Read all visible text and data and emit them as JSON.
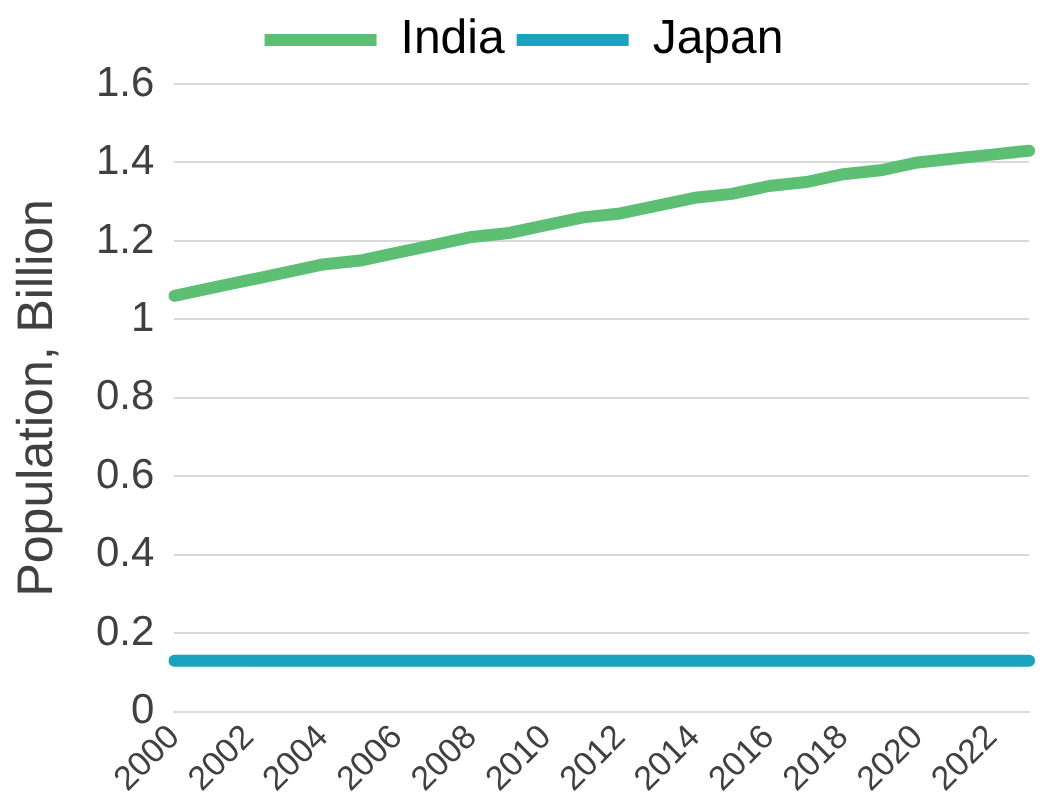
{
  "chart_data": {
    "type": "line",
    "ylabel": "Population, Billion",
    "categories": [
      "2000",
      null,
      "2002",
      null,
      "2004",
      null,
      "2006",
      null,
      "2008",
      null,
      "2010",
      null,
      "2012",
      null,
      "2014",
      null,
      "2016",
      null,
      "2018",
      null,
      "2020",
      null,
      "2022",
      null
    ],
    "series": [
      {
        "name": "India",
        "color": "#5cbf74",
        "values": [
          1.06,
          1.08,
          1.1,
          1.12,
          1.14,
          1.15,
          1.17,
          1.19,
          1.21,
          1.22,
          1.24,
          1.26,
          1.27,
          1.29,
          1.31,
          1.32,
          1.34,
          1.35,
          1.37,
          1.38,
          1.4,
          1.41,
          1.42,
          1.43
        ]
      },
      {
        "name": "Japan",
        "color": "#1aa3bf",
        "values": [
          0.13,
          0.13,
          0.13,
          0.13,
          0.13,
          0.13,
          0.13,
          0.13,
          0.13,
          0.13,
          0.13,
          0.13,
          0.13,
          0.13,
          0.13,
          0.13,
          0.13,
          0.13,
          0.13,
          0.13,
          0.13,
          0.13,
          0.13,
          0.13
        ]
      }
    ],
    "ylim": [
      0,
      1.6
    ],
    "yticks": [
      0,
      0.2,
      0.4,
      0.6,
      0.8,
      1,
      1.2,
      1.4,
      1.6
    ],
    "grid": "y",
    "legend": "top",
    "marker": "none",
    "line_style": "solid"
  }
}
